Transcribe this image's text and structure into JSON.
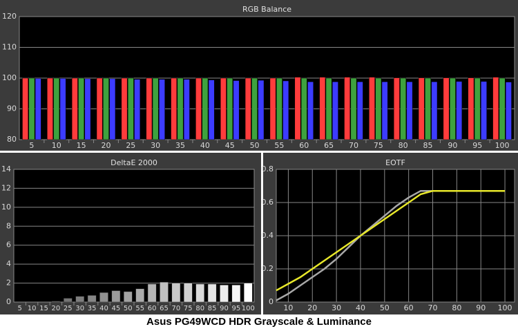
{
  "chart_data": [
    {
      "type": "bar",
      "title": "RGB Balance",
      "categories": [
        "5",
        "10",
        "15",
        "20",
        "25",
        "30",
        "35",
        "40",
        "45",
        "50",
        "55",
        "60",
        "65",
        "70",
        "75",
        "80",
        "85",
        "90",
        "95",
        "100"
      ],
      "series": [
        {
          "color": "#ff3c3c",
          "values": [
            100.0,
            100.0,
            100.0,
            100.0,
            100.0,
            100.0,
            100.0,
            100.0,
            100.0,
            100.0,
            100.0,
            100.3,
            100.3,
            100.3,
            100.3,
            100.1,
            100.1,
            100.1,
            100.1,
            100.3
          ]
        },
        {
          "color": "#3ea23e",
          "values": [
            100.0,
            100.0,
            100.0,
            100.0,
            100.0,
            100.0,
            100.0,
            100.0,
            100.0,
            100.0,
            100.0,
            100.0,
            100.0,
            100.0,
            100.0,
            100.0,
            100.0,
            100.0,
            100.0,
            100.0
          ]
        },
        {
          "color": "#3c3cff",
          "values": [
            99.9,
            99.9,
            99.8,
            99.8,
            99.6,
            99.6,
            99.6,
            99.4,
            99.2,
            99.3,
            99.1,
            98.8,
            98.8,
            98.8,
            98.8,
            98.8,
            98.8,
            98.9,
            98.9,
            98.7
          ]
        }
      ],
      "ylim": [
        80,
        120
      ],
      "yticks": [
        80,
        90,
        100,
        110,
        120
      ],
      "grid": true
    },
    {
      "type": "bar",
      "title": "DeltaE 2000",
      "categories": [
        "5",
        "10",
        "15",
        "20",
        "25",
        "30",
        "35",
        "40",
        "45",
        "50",
        "55",
        "60",
        "65",
        "70",
        "75",
        "80",
        "85",
        "90",
        "95",
        "100"
      ],
      "values": [
        0,
        0,
        0,
        0.1,
        0.4,
        0.6,
        0.7,
        1.0,
        1.2,
        1.1,
        1.4,
        1.9,
        2.1,
        2.0,
        2.0,
        1.9,
        1.9,
        1.8,
        1.8,
        2.0
      ],
      "colors": [
        "#505050",
        "#ffffff"
      ],
      "ylim": [
        0,
        14
      ],
      "yticks": [
        0,
        2,
        4,
        6,
        8,
        10,
        12,
        14
      ],
      "grid": true
    },
    {
      "type": "line",
      "title": "EOTF",
      "x": [
        5,
        10,
        15,
        20,
        25,
        30,
        35,
        40,
        45,
        50,
        55,
        60,
        65,
        70,
        75,
        80,
        85,
        90,
        95,
        100
      ],
      "series": [
        {
          "color": "#a8a8a8",
          "values": [
            0.01,
            0.05,
            0.1,
            0.15,
            0.2,
            0.26,
            0.33,
            0.4,
            0.46,
            0.52,
            0.58,
            0.63,
            0.67,
            0.67,
            0.67,
            0.67,
            0.67,
            0.67,
            0.67,
            0.67
          ]
        },
        {
          "color": "#e8e82a",
          "values": [
            0.07,
            0.11,
            0.15,
            0.2,
            0.25,
            0.3,
            0.35,
            0.4,
            0.45,
            0.5,
            0.55,
            0.6,
            0.65,
            0.67,
            0.67,
            0.67,
            0.67,
            0.67,
            0.67,
            0.67
          ]
        }
      ],
      "xlim": [
        5,
        104
      ],
      "xticks": [
        10,
        20,
        30,
        40,
        50,
        60,
        70,
        80,
        90,
        100
      ],
      "ylim": [
        0,
        0.8
      ],
      "yticks": [
        0,
        0.2,
        0.4,
        0.6,
        0.8
      ],
      "grid": true
    }
  ],
  "caption": "Asus PG49WCD HDR Grayscale & Luminance"
}
